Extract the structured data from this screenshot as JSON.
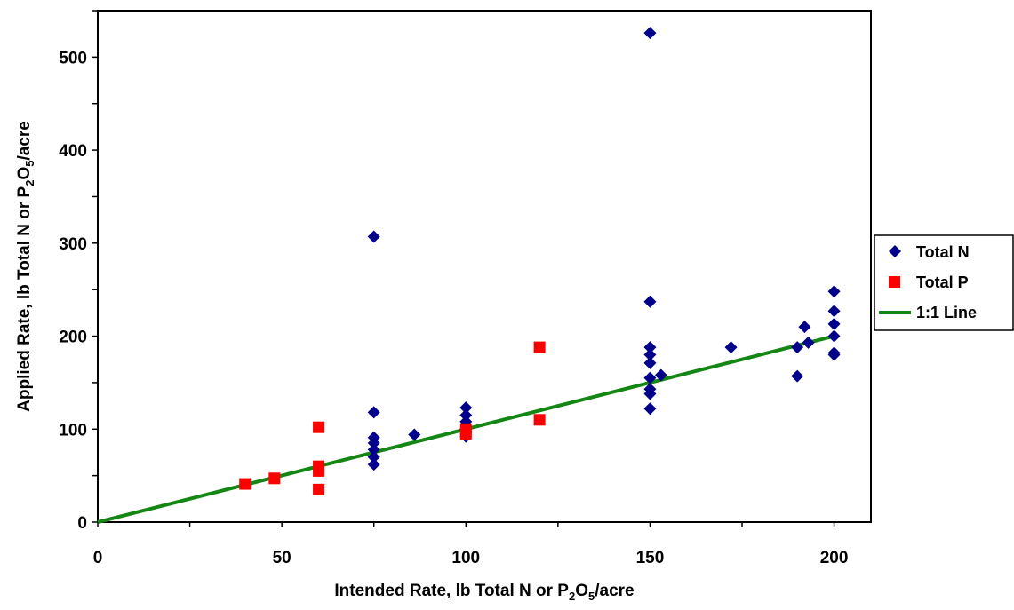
{
  "chart_data": {
    "type": "scatter",
    "title": "",
    "xlabel": {
      "prefix": "Intended Rate, lb Total N or P",
      "sub1": "2",
      "mid": "O",
      "sub2": "5",
      "suffix": "/acre"
    },
    "ylabel": {
      "prefix": "Applied Rate, lb Total N or P",
      "sub1": "2",
      "mid": "O",
      "sub2": "5",
      "suffix": "/acre"
    },
    "xlim": [
      0,
      210
    ],
    "ylim": [
      0,
      550
    ],
    "x_ticks": [
      "0",
      "50",
      "100",
      "150",
      "200"
    ],
    "y_ticks": [
      "0",
      "100",
      "200",
      "300",
      "400",
      "500"
    ],
    "grid": false,
    "legend_position": "right",
    "series": [
      {
        "name": "Total N",
        "marker": "diamond",
        "color": "#00008b",
        "points": [
          [
            75,
            307
          ],
          [
            75,
            118
          ],
          [
            75,
            91
          ],
          [
            75,
            85
          ],
          [
            75,
            78
          ],
          [
            75,
            70
          ],
          [
            75,
            62
          ],
          [
            86,
            94
          ],
          [
            100,
            123
          ],
          [
            100,
            115
          ],
          [
            100,
            108
          ],
          [
            100,
            100
          ],
          [
            100,
            92
          ],
          [
            150,
            526
          ],
          [
            150,
            237
          ],
          [
            150,
            188
          ],
          [
            150,
            180
          ],
          [
            150,
            171
          ],
          [
            150,
            155
          ],
          [
            150,
            143
          ],
          [
            150,
            138
          ],
          [
            150,
            122
          ],
          [
            153,
            158
          ],
          [
            172,
            188
          ],
          [
            190,
            188
          ],
          [
            190,
            157
          ],
          [
            192,
            210
          ],
          [
            193,
            193
          ],
          [
            200,
            248
          ],
          [
            200,
            227
          ],
          [
            200,
            213
          ],
          [
            200,
            200
          ],
          [
            200,
            182
          ],
          [
            200,
            180
          ]
        ]
      },
      {
        "name": "Total P",
        "marker": "square",
        "color": "#ff0000",
        "points": [
          [
            40,
            41
          ],
          [
            48,
            47
          ],
          [
            60,
            102
          ],
          [
            60,
            60
          ],
          [
            60,
            55
          ],
          [
            60,
            35
          ],
          [
            100,
            100
          ],
          [
            100,
            95
          ],
          [
            120,
            188
          ],
          [
            120,
            110
          ]
        ]
      },
      {
        "name": "1:1 Line",
        "marker": "line",
        "color": "#138613",
        "points": [
          [
            0,
            0
          ],
          [
            200,
            200
          ]
        ]
      }
    ]
  }
}
